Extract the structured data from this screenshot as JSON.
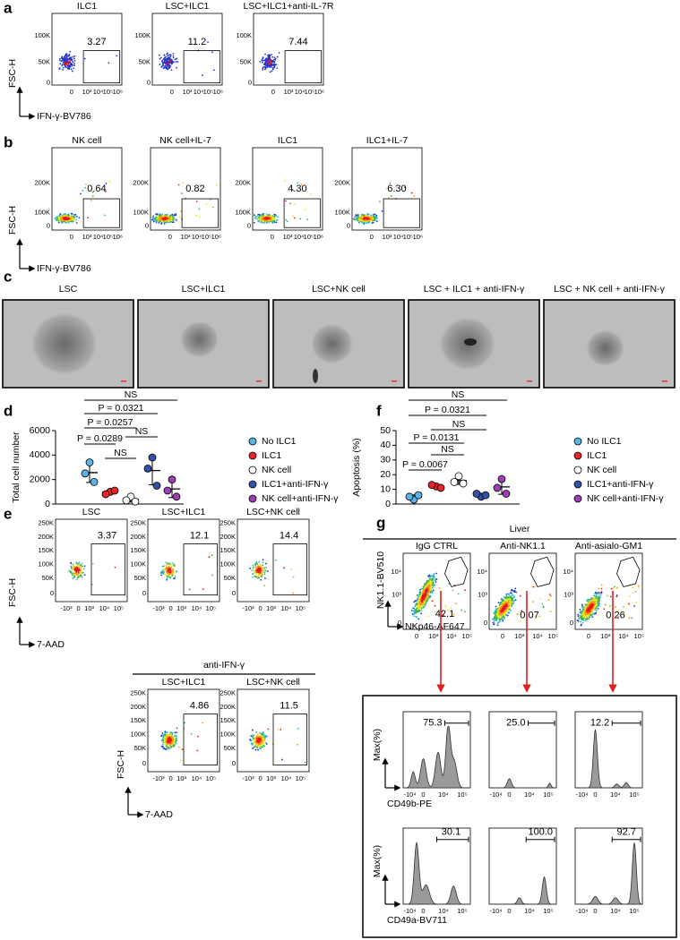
{
  "panel_a": {
    "letter": "a",
    "plots": [
      {
        "title": "ILC1",
        "gate": "3.27"
      },
      {
        "title": "LSC+ILC1",
        "gate": "11.2"
      },
      {
        "title": "LSC+ILC1+anti-IL-7R",
        "gate": "7.44"
      }
    ],
    "y_axis": "FSC-H",
    "x_axis": "IFN-γ-BV786",
    "yticks": [
      "100K",
      "50K",
      "0"
    ],
    "xticks": [
      "0",
      "10³",
      "10⁴",
      "10⁵",
      "10⁶"
    ]
  },
  "panel_b": {
    "letter": "b",
    "plots": [
      {
        "title": "NK cell",
        "gate": "0.64"
      },
      {
        "title": "NK cell+IL-7",
        "gate": "0.82"
      },
      {
        "title": "ILC1",
        "gate": "4.30"
      },
      {
        "title": "ILC1+IL-7",
        "gate": "6.30"
      }
    ],
    "y_axis": "FSC-H",
    "x_axis": "IFN-γ-BV786",
    "yticks": [
      "200K",
      "100K",
      "0"
    ],
    "xticks": [
      "0",
      "10³",
      "10⁴",
      "10⁵",
      "10⁶"
    ]
  },
  "panel_c": {
    "letter": "c",
    "images": [
      "LSC",
      "LSC+ILC1",
      "LSC+NK cell",
      "LSC + ILC1 + anti-IFN-γ",
      "LSC + NK cell + anti-IFN-γ"
    ]
  },
  "panel_d": {
    "letter": "d",
    "chart": {
      "type": "dot",
      "y_label": "Total cell number",
      "ylim": [
        0,
        6000
      ],
      "yticks": [
        0,
        2000,
        4000,
        6000
      ],
      "series": [
        {
          "name": "No ILC1",
          "color": "#5ab4e5",
          "values": [
            3400,
            2500,
            1800
          ]
        },
        {
          "name": "ILC1",
          "color": "#e8262a",
          "values": [
            1000,
            800,
            1100
          ]
        },
        {
          "name": "NK cell",
          "color": "#ffffff",
          "values": [
            600,
            300,
            200
          ]
        },
        {
          "name": "ILC1+anti-IFN-γ",
          "color": "#3450a8",
          "values": [
            3800,
            2900,
            1500
          ]
        },
        {
          "name": "NK cell+anti-IFN-γ",
          "color": "#9b3fb5",
          "values": [
            2000,
            1100,
            600
          ]
        }
      ],
      "comparisons": [
        "NS",
        "P = 0.0321",
        "P = 0.0257",
        "NS",
        "P = 0.0289",
        "NS"
      ]
    }
  },
  "panel_e": {
    "letter": "e",
    "plots": [
      {
        "title": "LSC",
        "gate": "3.37"
      },
      {
        "title": "LSC+ILC1",
        "gate": "12.1"
      },
      {
        "title": "LSC+NK cell",
        "gate": "14.4"
      },
      {
        "title": "LSC+ILC1",
        "gate": "4.86"
      },
      {
        "title": "LSC+NK cell",
        "gate": "11.5"
      }
    ],
    "treatment": "anti-IFN-γ",
    "y_axis": "FSC-H",
    "x_axis": "7-AAD",
    "yticks": [
      "250K",
      "200K",
      "150K",
      "100K",
      "50K",
      "0"
    ],
    "xticks": [
      "-10³",
      "0",
      "10³",
      "10⁴",
      "10⁵"
    ]
  },
  "panel_f": {
    "letter": "f",
    "chart": {
      "type": "dot",
      "y_label": "Apoptosis (%)",
      "ylim": [
        0,
        50
      ],
      "yticks": [
        0,
        10,
        20,
        30,
        40,
        50
      ],
      "series": [
        {
          "name": "No ILC1",
          "color": "#5ab4e5",
          "values": [
            3,
            5,
            6
          ]
        },
        {
          "name": "ILC1",
          "color": "#e8262a",
          "values": [
            12,
            13,
            11
          ]
        },
        {
          "name": "NK cell",
          "color": "#ffffff",
          "values": [
            19,
            15,
            14
          ]
        },
        {
          "name": "ILC1+anti-IFN-γ",
          "color": "#3450a8",
          "values": [
            5,
            7,
            6
          ]
        },
        {
          "name": "NK cell+anti-IFN-γ",
          "color": "#9b3fb5",
          "values": [
            17,
            11,
            7
          ]
        }
      ],
      "comparisons": [
        "NS",
        "P = 0.0321",
        "NS",
        "P = 0.0131",
        "NS",
        "P = 0.0067"
      ]
    }
  },
  "panel_g": {
    "letter": "g",
    "tissue": "Liver",
    "plots": [
      {
        "title": "IgG CTRL",
        "gate": "42.1"
      },
      {
        "title": "Anti-NK1.1",
        "gate": "0.07"
      },
      {
        "title": "Anti-asialo-GM1",
        "gate": "0.26"
      }
    ],
    "y_axis": "NK1.1-BV510",
    "x_axis": "NKp46-AF647",
    "yticks": [
      "10⁴",
      "10³",
      "0"
    ],
    "xticks": [
      "0",
      "10³",
      "10⁴",
      "10⁵"
    ],
    "histograms": [
      {
        "x_axis": "CD49b-PE",
        "gates": [
          "75.3",
          "25.0",
          "12.2"
        ]
      },
      {
        "x_axis": "CD49a-BV711",
        "gates": [
          "30.1",
          "100.0",
          "92.7"
        ]
      }
    ],
    "hist_y_axis": "Max(%)",
    "hist_xticks": [
      "-10⁴",
      "0",
      "10⁴",
      "10⁵"
    ]
  }
}
